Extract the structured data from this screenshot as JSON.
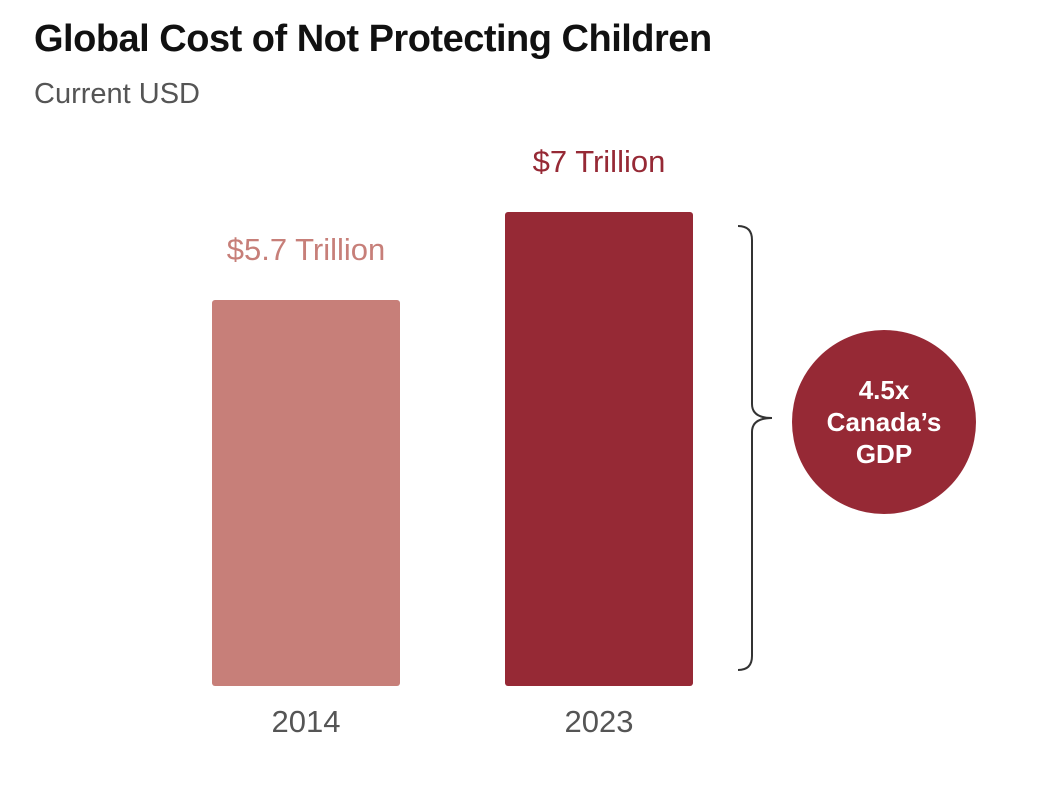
{
  "colors": {
    "bar_2014": "#c77f79",
    "bar_2023": "#962935",
    "label_2014": "#c77f79",
    "label_2023": "#962935",
    "axis_text": "#555555",
    "bracket": "#333333",
    "callout_bg": "#962935"
  },
  "callout": {
    "line1": "4.5x",
    "line2": "Canada’s",
    "line3": "GDP"
  },
  "chart_data": {
    "type": "bar",
    "title": "Global Cost of Not Protecting Children",
    "subtitle": "Current USD",
    "categories": [
      "2014",
      "2023"
    ],
    "values": [
      5.7,
      7
    ],
    "value_labels": [
      "$5.7 Trillion",
      "$7 Trillion"
    ],
    "unit": "Trillion USD",
    "ylim": [
      0,
      7
    ],
    "grid": false,
    "annotation": "4.5x Canada’s GDP"
  }
}
